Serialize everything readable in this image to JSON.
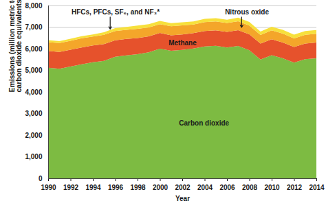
{
  "chart_data": {
    "type": "area",
    "stacked": true,
    "x_label": "Year",
    "y_label": "Emissions (million metric tons of carbon dioxide equivalents)",
    "x": [
      1990,
      1991,
      1992,
      1993,
      1994,
      1995,
      1996,
      1997,
      1998,
      1999,
      2000,
      2001,
      2002,
      2003,
      2004,
      2005,
      2006,
      2007,
      2008,
      2009,
      2010,
      2011,
      2012,
      2013,
      2014
    ],
    "series": [
      {
        "name": "Carbon dioxide",
        "color": "#7dbb42",
        "values": [
          5121,
          5071,
          5174,
          5281,
          5375,
          5439,
          5625,
          5694,
          5750,
          5833,
          6002,
          5902,
          5945,
          6004,
          6107,
          6132,
          6058,
          6128,
          5929,
          5500,
          5700,
          5559,
          5358,
          5518,
          5557
        ]
      },
      {
        "name": "Methane",
        "color": "#e6522c",
        "values": [
          774,
          777,
          778,
          772,
          776,
          775,
          764,
          757,
          746,
          735,
          732,
          720,
          717,
          720,
          713,
          714,
          723,
          728,
          737,
          737,
          739,
          725,
          720,
          721,
          731
        ]
      },
      {
        "name": "Nitrous oxide",
        "color": "#f4a62a",
        "values": [
          406,
          410,
          413,
          429,
          410,
          427,
          430,
          423,
          424,
          415,
          400,
          418,
          415,
          398,
          410,
          414,
          411,
          415,
          408,
          400,
          411,
          416,
          399,
          407,
          403
        ]
      },
      {
        "name": "HFCs, PFCs, SF₆, and NF₃*",
        "color": "#f7e03c",
        "values": [
          99,
          91,
          94,
          94,
          99,
          121,
          132,
          137,
          152,
          148,
          150,
          139,
          146,
          140,
          148,
          149,
          151,
          163,
          162,
          156,
          167,
          175,
          170,
          172,
          176
        ]
      }
    ],
    "xlim": [
      1990,
      2014
    ],
    "xticks": [
      1990,
      1992,
      1994,
      1996,
      1998,
      2000,
      2002,
      2004,
      2006,
      2008,
      2010,
      2012,
      2014
    ],
    "ylim": [
      0,
      8000
    ],
    "yticks": [
      0,
      {
        "value": 1000,
        "label": "1,000"
      },
      {
        "value": 2000,
        "label": "2,000"
      },
      {
        "value": 3000,
        "label": "3,000"
      },
      {
        "value": 4000,
        "label": "4,000"
      },
      {
        "value": 5000,
        "label": "5,000"
      },
      {
        "value": 6000,
        "label": "6,000"
      },
      {
        "value": 7000,
        "label": "7,000"
      },
      {
        "value": 8000,
        "label": "8,000"
      }
    ],
    "grid": true
  }
}
